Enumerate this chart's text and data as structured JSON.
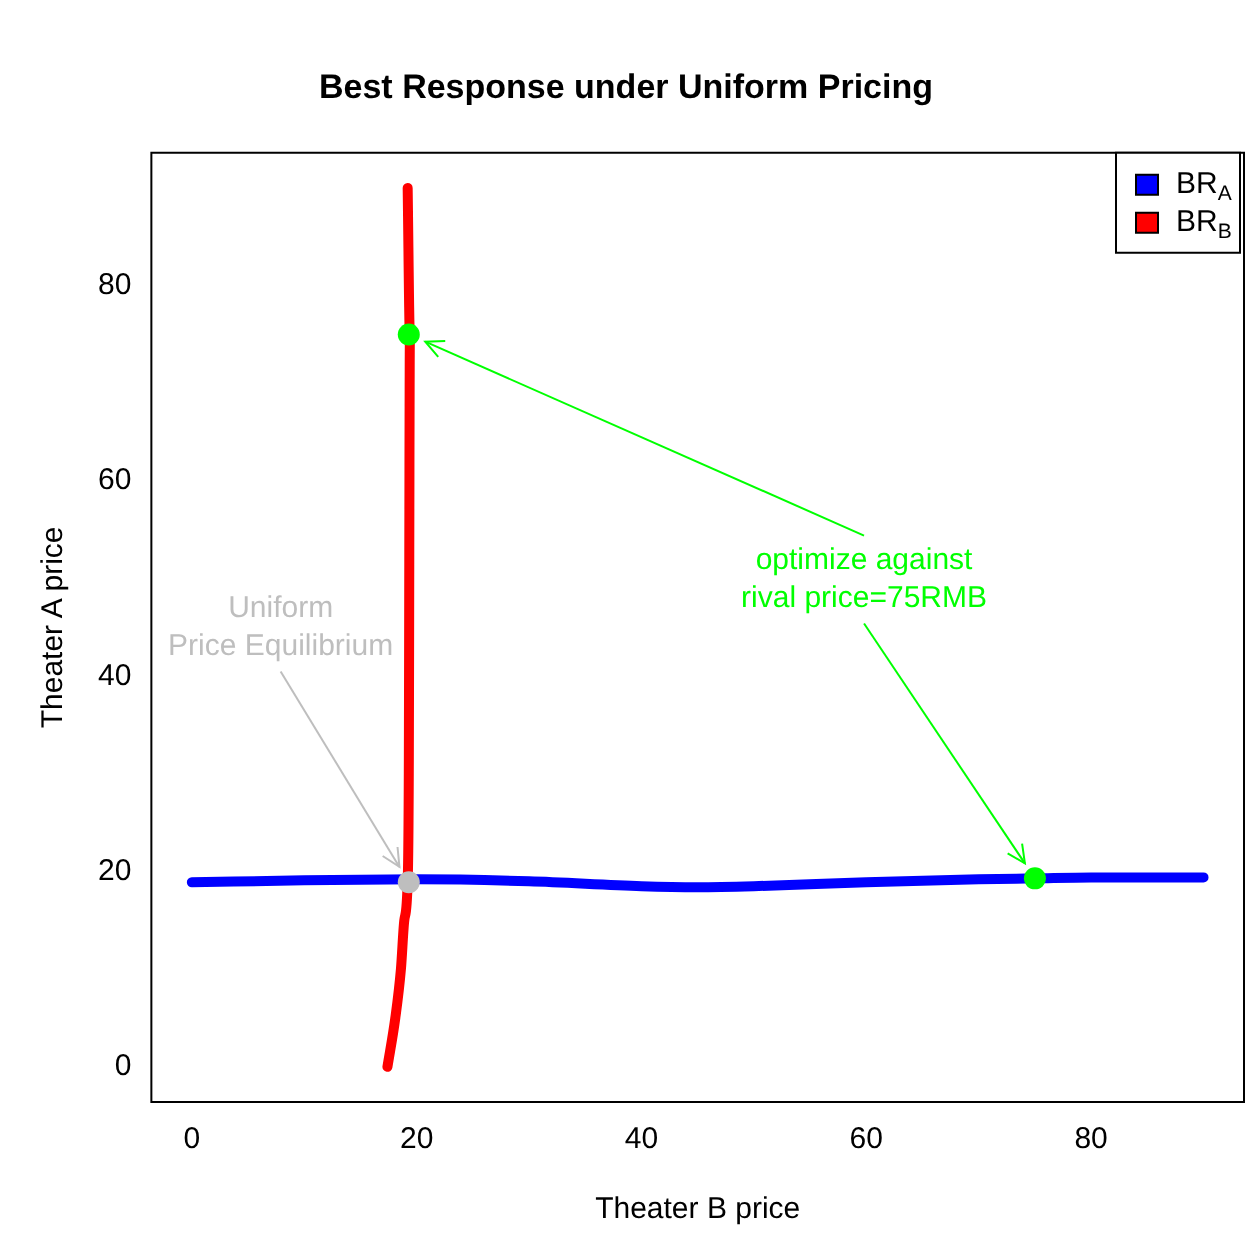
{
  "chart_data": {
    "type": "line",
    "title": "Best Response under Uniform Pricing",
    "xlabel": "Theater B price",
    "ylabel": "Theater A price",
    "xlim": [
      -3.6,
      93.6
    ],
    "ylim": [
      -3.6,
      93.6
    ],
    "xticks": [
      0,
      20,
      40,
      60,
      80
    ],
    "yticks": [
      0,
      20,
      40,
      60,
      80
    ],
    "grid": false,
    "legend": "top right",
    "line_style": "solid",
    "series": [
      {
        "name": "BR$_{A}$",
        "color": "#0000ff",
        "marker": "none",
        "x": [
          0,
          10,
          20,
          30,
          40,
          45,
          50,
          60,
          70,
          75,
          80,
          90
        ],
        "values": [
          18.9,
          19.1,
          19.2,
          19.0,
          18.5,
          18.4,
          18.5,
          18.9,
          19.2,
          19.3,
          19.4,
          19.4
        ]
      },
      {
        "name": "BR$_{B}$",
        "color": "#ff0000",
        "marker": "none",
        "x": [
          17.4,
          18.1,
          18.6,
          18.9,
          19.2,
          19.3,
          19.4,
          19.2
        ],
        "values": [
          0,
          5,
          10,
          15,
          19,
          30,
          75,
          90
        ]
      },
      {
        "type": "scatter",
        "marker": "circle",
        "x": [
          19.3,
          75,
          19.3
        ],
        "values": [
          75,
          19.3,
          18.9
        ],
        "colors": [
          "#00ff00",
          "#00ff00",
          "#bebebe"
        ]
      }
    ],
    "annotations": [
      {
        "text": "optimize against\nrival price=75RMB",
        "x": 19.3,
        "y": 75
      },
      {
        "text": "Uniform\nPrice Equilibrium",
        "x": 19.3,
        "y": 18.9
      }
    ]
  }
}
